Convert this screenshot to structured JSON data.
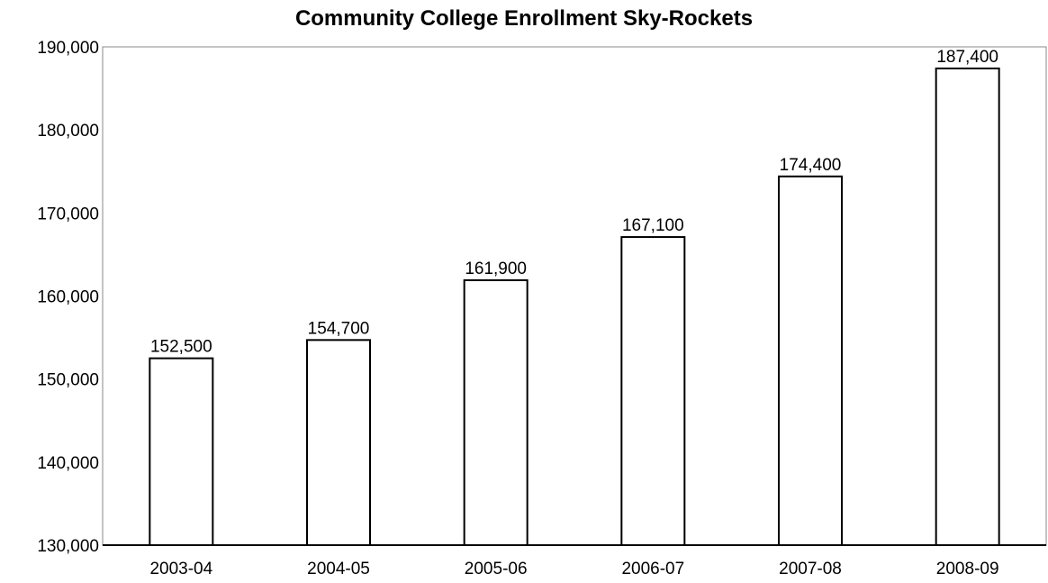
{
  "chart_data": {
    "type": "bar",
    "title": "Community College Enrollment Sky-Rockets",
    "xlabel": "",
    "ylabel": "",
    "categories": [
      "2003-04",
      "2004-05",
      "2005-06",
      "2006-07",
      "2007-08",
      "2008-09"
    ],
    "values": [
      152500,
      154700,
      161900,
      167100,
      174400,
      187400
    ],
    "data_labels": [
      "152,500",
      "154,700",
      "161,900",
      "167,100",
      "174,400",
      "187,400"
    ],
    "ylim": [
      130000,
      190000
    ],
    "yticks": [
      130000,
      140000,
      150000,
      160000,
      170000,
      180000,
      190000
    ],
    "ytick_labels": [
      "130,000",
      "140,000",
      "150,000",
      "160,000",
      "170,000",
      "180,000",
      "190,000"
    ],
    "grid": false,
    "legend": "none",
    "colors": {
      "bar_fill": "#ffffff",
      "bar_stroke": "#000000",
      "frame": "#8a8a8a",
      "text": "#000000"
    }
  }
}
